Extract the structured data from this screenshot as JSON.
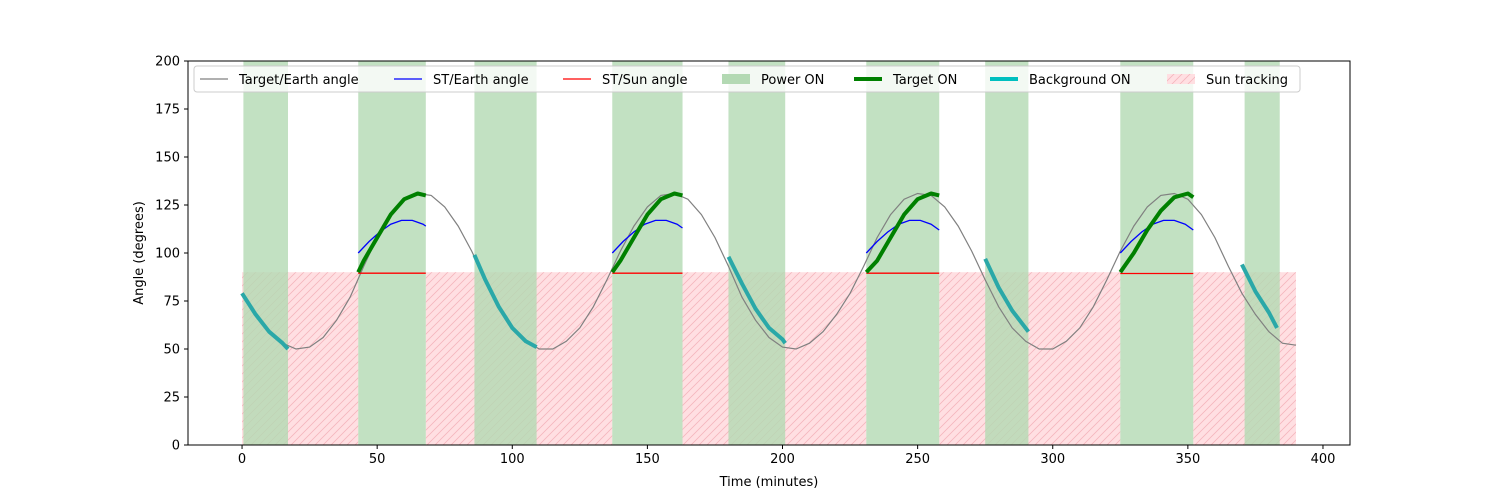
{
  "chart_data": {
    "type": "line",
    "title": "",
    "xlabel": "Time (minutes)",
    "ylabel": "Angle (degrees)",
    "xlim": [
      -20,
      410
    ],
    "ylim": [
      0,
      200
    ],
    "xticks": [
      0,
      50,
      100,
      150,
      200,
      250,
      300,
      350,
      400
    ],
    "yticks": [
      0,
      25,
      50,
      75,
      100,
      125,
      150,
      175,
      200
    ],
    "grid": false,
    "legend_placement": "top",
    "legend": [
      {
        "label": "Target/Earth angle",
        "kind": "line",
        "color": "#808080"
      },
      {
        "label": "ST/Earth angle",
        "kind": "line",
        "color": "#0000ff"
      },
      {
        "label": "ST/Sun angle",
        "kind": "line",
        "color": "#ff0000"
      },
      {
        "label": "Power ON",
        "kind": "patch",
        "color": "#b3d9b3"
      },
      {
        "label": "Target ON",
        "kind": "thickline",
        "color": "#008000"
      },
      {
        "label": "Background ON",
        "kind": "thickline",
        "color": "#00bfbf"
      },
      {
        "label": "Sun tracking",
        "kind": "hatch",
        "color": "#ffdfe2"
      }
    ],
    "colors": {
      "target_earth": "#808080",
      "st_earth": "#0000ff",
      "st_sun": "#ff0000",
      "power_on": "#b3d9b3",
      "target_on": "#008000",
      "background_on": "#2aa8a8",
      "sun_tracking": "#ffdfe2"
    },
    "target_earth": {
      "x": [
        0,
        5,
        10,
        15,
        20,
        25,
        30,
        35,
        40,
        45,
        50,
        55,
        60,
        65,
        70,
        75,
        80,
        85,
        90,
        95,
        100,
        105,
        110,
        115,
        120,
        125,
        130,
        135,
        140,
        145,
        150,
        155,
        160,
        165,
        170,
        175,
        180,
        185,
        190,
        195,
        200,
        205,
        210,
        215,
        220,
        225,
        230,
        235,
        240,
        245,
        250,
        255,
        260,
        265,
        270,
        275,
        280,
        285,
        290,
        295,
        300,
        305,
        310,
        315,
        320,
        325,
        330,
        335,
        340,
        345,
        350,
        355,
        360,
        365,
        370,
        375,
        380,
        385,
        390
      ],
      "y": [
        79,
        68,
        59,
        53,
        50,
        51,
        56,
        65,
        77,
        93,
        108,
        120,
        128,
        131,
        130,
        124,
        114,
        101,
        86,
        72,
        61,
        54,
        50,
        50,
        54,
        61,
        72,
        86,
        101,
        114,
        124,
        130,
        131,
        128,
        120,
        108,
        93,
        77,
        65,
        56,
        51,
        50,
        53,
        59,
        68,
        79,
        93,
        108,
        120,
        128,
        131,
        130,
        124,
        114,
        101,
        86,
        72,
        61,
        54,
        50,
        50,
        54,
        61,
        72,
        86,
        101,
        114,
        124,
        130,
        131,
        128,
        120,
        108,
        93,
        79,
        68,
        59,
        53,
        52
      ]
    },
    "st_earth": [
      {
        "x": [
          43,
          47,
          51,
          55,
          59,
          63,
          67,
          68
        ],
        "y": [
          100,
          106,
          111,
          115,
          117,
          117,
          115,
          114
        ]
      },
      {
        "x": [
          137,
          141,
          145,
          149,
          153,
          157,
          161,
          163
        ],
        "y": [
          100,
          106,
          111,
          115,
          117,
          117,
          115,
          113
        ]
      },
      {
        "x": [
          231,
          235,
          239,
          243,
          247,
          251,
          255,
          258
        ],
        "y": [
          100,
          106,
          111,
          115,
          117,
          117,
          115,
          112
        ]
      },
      {
        "x": [
          325,
          329,
          333,
          337,
          341,
          345,
          349,
          352
        ],
        "y": [
          100,
          106,
          111,
          115,
          117,
          117,
          115,
          112
        ]
      }
    ],
    "st_sun": [
      {
        "x": [
          43,
          68
        ],
        "y": [
          89.5,
          89.5
        ]
      },
      {
        "x": [
          137,
          163
        ],
        "y": [
          89.5,
          89.5
        ]
      },
      {
        "x": [
          231,
          258
        ],
        "y": [
          89.5,
          89.5
        ]
      },
      {
        "x": [
          325,
          352
        ],
        "y": [
          89.3,
          89.3
        ]
      }
    ],
    "target_on": [
      {
        "x": [
          43,
          45,
          50,
          55,
          60,
          65,
          68
        ],
        "y": [
          90,
          96,
          108,
          120,
          128,
          131,
          130
        ]
      },
      {
        "x": [
          137,
          140,
          145,
          150,
          155,
          160,
          163
        ],
        "y": [
          90,
          96,
          108,
          120,
          128,
          131,
          130
        ]
      },
      {
        "x": [
          231,
          235,
          240,
          245,
          250,
          255,
          258
        ],
        "y": [
          90,
          96,
          108,
          120,
          128,
          131,
          130
        ]
      },
      {
        "x": [
          325,
          330,
          335,
          340,
          345,
          350,
          352
        ],
        "y": [
          90,
          100,
          112,
          122,
          129,
          131,
          129
        ]
      }
    ],
    "background_on": [
      {
        "x": [
          0,
          5,
          10,
          15,
          17
        ],
        "y": [
          79,
          68,
          59,
          53,
          50
        ]
      },
      {
        "x": [
          86,
          90,
          95,
          100,
          105,
          109
        ],
        "y": [
          99,
          86,
          72,
          61,
          54,
          51
        ]
      },
      {
        "x": [
          180,
          185,
          190,
          195,
          200,
          201
        ],
        "y": [
          98,
          84,
          71,
          61,
          55,
          53
        ]
      },
      {
        "x": [
          275,
          280,
          285,
          291
        ],
        "y": [
          97,
          82,
          70,
          59
        ]
      },
      {
        "x": [
          370,
          375,
          380,
          383
        ],
        "y": [
          94,
          80,
          69,
          61
        ]
      }
    ],
    "power_on_spans": [
      [
        0.5,
        17
      ],
      [
        43,
        68
      ],
      [
        86,
        109
      ],
      [
        137,
        163
      ],
      [
        180,
        201
      ],
      [
        231,
        258
      ],
      [
        275,
        291
      ],
      [
        325,
        352
      ],
      [
        371,
        384
      ]
    ],
    "sun_tracking_spans": [
      [
        0,
        43
      ],
      [
        68,
        137
      ],
      [
        163,
        231
      ],
      [
        258,
        325
      ],
      [
        352,
        390
      ]
    ],
    "sun_tracking_top": 90
  }
}
